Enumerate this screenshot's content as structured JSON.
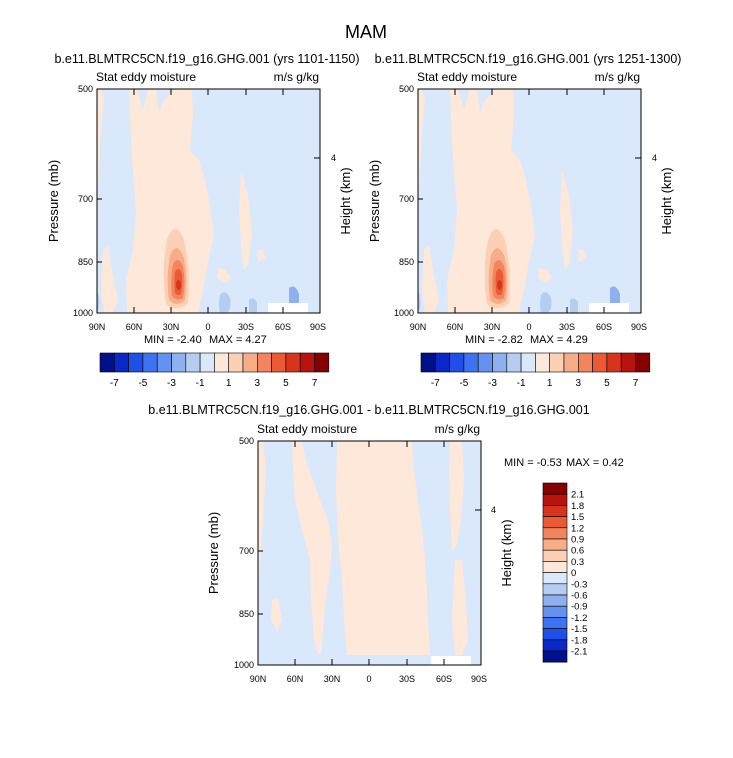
{
  "figure_title": "MAM",
  "colors": {
    "blue": [
      "#000f8a",
      "#0a28c8",
      "#1f4fe6",
      "#3d72f0",
      "#6592ee",
      "#8eb0ee",
      "#b6cdf2",
      "#d9e8fb"
    ],
    "red": [
      "#fde8da",
      "#fbd0b4",
      "#f8ad89",
      "#f3855e",
      "#ea5a35",
      "#d8331b",
      "#b71410",
      "#870000"
    ]
  },
  "chart_data": [
    {
      "id": "top-left",
      "type": "heatmap",
      "title": "b.e11.BLMTRC5CN.f19_g16.GHG.001 (yrs 1101-1150)",
      "left_string": "Stat eddy moisture",
      "right_string": "m/s g/kg",
      "ylabel": "Pressure (mb)",
      "ylabel_right": "Height (km)",
      "x_ticks": [
        "90N",
        "60N",
        "30N",
        "0",
        "30S",
        "60S",
        "90S"
      ],
      "y_ticks": [
        "500",
        "700",
        "850",
        "1000"
      ],
      "y_right_ticks": [
        "4"
      ],
      "min_text": "MIN = -2.40",
      "max_text": "MAX = 4.27",
      "min": -2.4,
      "max": 4.27,
      "colorbar_labels": [
        "-7",
        "-5",
        "-3",
        "-1",
        "1",
        "3",
        "5",
        "7"
      ],
      "colorbar_orientation": "horizontal"
    },
    {
      "id": "top-right",
      "type": "heatmap",
      "title": "b.e11.BLMTRC5CN.f19_g16.GHG.001 (yrs 1251-1300)",
      "left_string": "Stat eddy moisture",
      "right_string": "m/s g/kg",
      "ylabel": "Pressure (mb)",
      "ylabel_right": "Height (km)",
      "x_ticks": [
        "90N",
        "60N",
        "30N",
        "0",
        "30S",
        "60S",
        "90S"
      ],
      "y_ticks": [
        "500",
        "700",
        "850",
        "1000"
      ],
      "y_right_ticks": [
        "4"
      ],
      "min_text": "MIN = -2.82",
      "max_text": "MAX = 4.29",
      "min": -2.82,
      "max": 4.29,
      "colorbar_labels": [
        "-7",
        "-5",
        "-3",
        "-1",
        "1",
        "3",
        "5",
        "7"
      ],
      "colorbar_orientation": "horizontal"
    },
    {
      "id": "bottom-diff",
      "type": "heatmap",
      "title": "b.e11.BLMTRC5CN.f19_g16.GHG.001 - b.e11.BLMTRC5CN.f19_g16.GHG.001",
      "left_string": "Stat eddy moisture",
      "right_string": "m/s g/kg",
      "ylabel": "Pressure (mb)",
      "ylabel_right": "Height (km)",
      "x_ticks": [
        "90N",
        "60N",
        "30N",
        "0",
        "30S",
        "60S",
        "90S"
      ],
      "y_ticks": [
        "500",
        "700",
        "850",
        "1000"
      ],
      "y_right_ticks": [
        "4"
      ],
      "min_text": "MIN = -0.53",
      "max_text": "MAX =  0.42",
      "min": -0.53,
      "max": 0.42,
      "colorbar_labels": [
        "2.1",
        "1.8",
        "1.5",
        "1.2",
        "0.9",
        "0.6",
        "0.3",
        "0",
        "-0.3",
        "-0.6",
        "-0.9",
        "-1.2",
        "-1.5",
        "-1.8",
        "-2.1"
      ],
      "colorbar_orientation": "vertical"
    }
  ]
}
